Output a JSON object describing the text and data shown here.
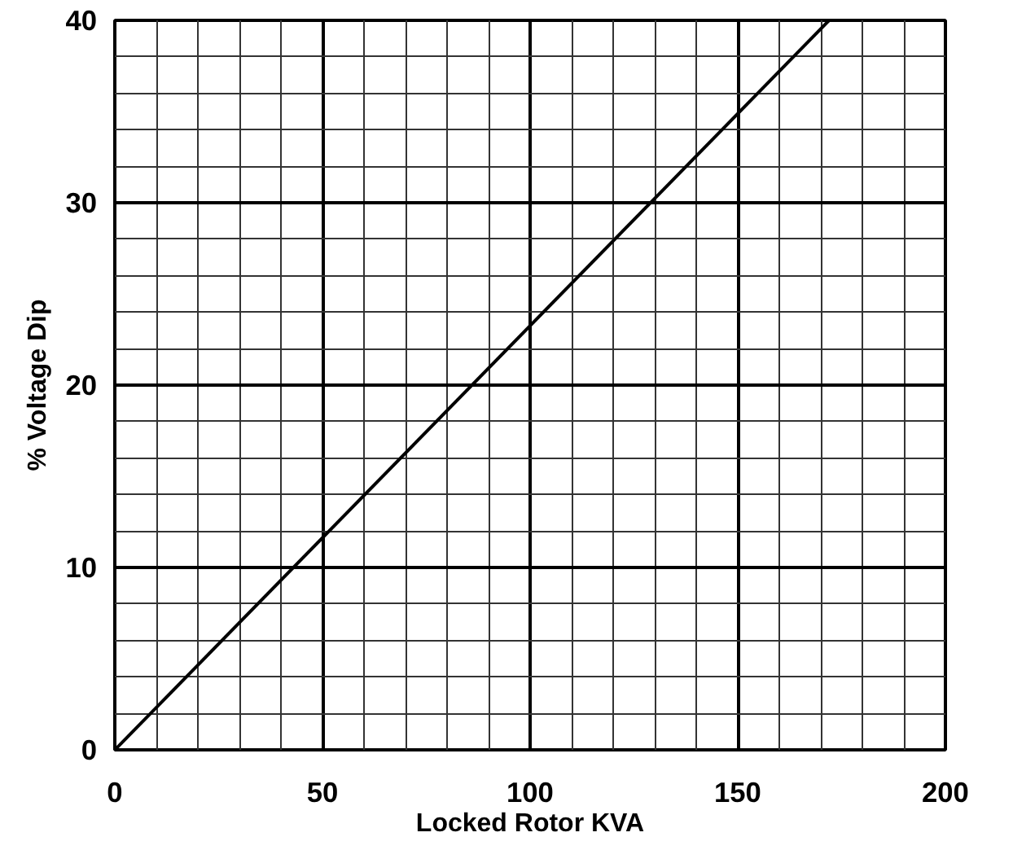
{
  "chart_data": {
    "type": "line",
    "xlabel": "Locked Rotor KVA",
    "ylabel": "% Voltage Dip",
    "x": [
      0,
      172
    ],
    "series": [
      {
        "color": "#000000",
        "values": [
          0,
          40
        ]
      }
    ],
    "xlim": [
      0,
      200
    ],
    "ylim": [
      0,
      40
    ],
    "xticks": [
      0,
      50,
      100,
      150,
      200
    ],
    "yticks": [
      0,
      10,
      20,
      30,
      40
    ],
    "grid": true,
    "line_style": "solid"
  }
}
